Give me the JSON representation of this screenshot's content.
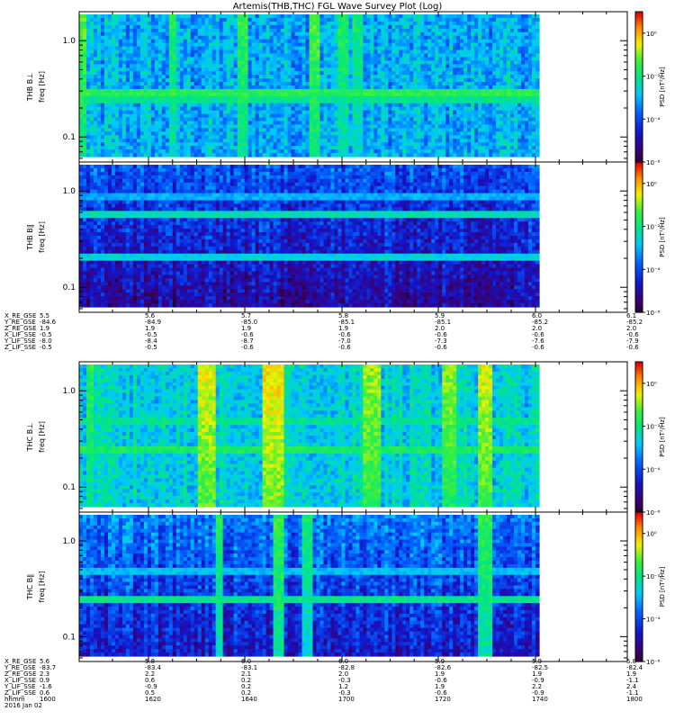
{
  "title": "Artemis(THB,THC) FGL Wave Survey Plot (Log)",
  "colors": {
    "frame": "#000000",
    "background": "#ffffff"
  },
  "colorbar": {
    "label": "PSD [nT²/Hz]",
    "ticks": [
      "10⁰",
      "10⁻²",
      "10⁻⁴",
      "10⁻⁶"
    ],
    "colormap": "rainbow-dark-to-red"
  },
  "chart_data": [
    {
      "type": "heatmap",
      "probe": "THB",
      "component": "B⊥",
      "ylabel_top": "THB B⊥",
      "ylabel": "freq [Hz]",
      "yscale": "log",
      "ylim": [
        0.055,
        2.0
      ],
      "yticks": [
        "1.0",
        "0.1"
      ],
      "ytick_values": [
        1.0,
        0.1
      ],
      "zlim": [
        1e-06,
        10
      ],
      "zscale": "log",
      "background_level": -3.0,
      "noise": 0.9,
      "bands": [
        {
          "f": 0.3,
          "level": -1.5
        },
        {
          "f": 0.24,
          "level": -2.1
        }
      ],
      "bursts": [
        {
          "x": 0.0,
          "level": -1.2,
          "width": 0.01
        },
        {
          "x": 0.2,
          "level": -1.6,
          "width": 0.01
        },
        {
          "x": 0.35,
          "level": -1.4,
          "width": 0.012
        },
        {
          "x": 0.51,
          "level": -1.2,
          "width": 0.012
        },
        {
          "x": 0.57,
          "level": -1.6,
          "width": 0.01
        },
        {
          "x": 0.6,
          "level": -1.8,
          "width": 0.01
        }
      ]
    },
    {
      "type": "heatmap",
      "probe": "THB",
      "component": "B∥",
      "ylabel_top": "THB B∥",
      "ylabel": "freq [Hz]",
      "yscale": "log",
      "ylim": [
        0.055,
        2.0
      ],
      "yticks": [
        "1.0",
        "0.1"
      ],
      "ytick_values": [
        1.0,
        0.1
      ],
      "zlim": [
        1e-06,
        10
      ],
      "zscale": "log",
      "background_level": -4.2,
      "noise": 0.9,
      "bands": [
        {
          "f": 0.6,
          "level": -2.3
        },
        {
          "f": 0.9,
          "level": -3.0
        },
        {
          "f": 0.2,
          "level": -2.6
        }
      ],
      "bursts": []
    },
    {
      "type": "heatmap",
      "probe": "THC",
      "component": "B⊥",
      "ylabel_top": "THC B⊥",
      "ylabel": "freq [Hz]",
      "yscale": "log",
      "ylim": [
        0.055,
        2.0
      ],
      "yticks": [
        "1.0",
        "0.1"
      ],
      "ytick_values": [
        1.0,
        0.1
      ],
      "zlim": [
        1e-06,
        10
      ],
      "zscale": "log",
      "background_level": -2.6,
      "noise": 0.8,
      "bands": [
        {
          "f": 0.24,
          "level": -1.7
        },
        {
          "f": 0.5,
          "level": -2.1
        }
      ],
      "bursts": [
        {
          "x": 0.02,
          "level": -1.5,
          "width": 0.01
        },
        {
          "x": 0.27,
          "level": -0.5,
          "width": 0.02
        },
        {
          "x": 0.42,
          "level": -0.3,
          "width": 0.025
        },
        {
          "x": 0.63,
          "level": -0.8,
          "width": 0.02
        },
        {
          "x": 0.8,
          "level": -0.9,
          "width": 0.015
        },
        {
          "x": 0.88,
          "level": -0.6,
          "width": 0.018
        }
      ]
    },
    {
      "type": "heatmap",
      "probe": "THC",
      "component": "B∥",
      "ylabel_top": "THC B∥",
      "ylabel": "freq [Hz]",
      "yscale": "log",
      "ylim": [
        0.055,
        2.0
      ],
      "yticks": [
        "1.0",
        "0.1"
      ],
      "ytick_values": [
        1.0,
        0.1
      ],
      "zlim": [
        1e-06,
        10
      ],
      "zscale": "log",
      "background_level": -3.8,
      "noise": 0.9,
      "bands": [
        {
          "f": 0.24,
          "level": -2.0
        },
        {
          "f": 0.5,
          "level": -2.8
        }
      ],
      "bursts": [
        {
          "x": 0.3,
          "level": -1.6,
          "width": 0.01
        },
        {
          "x": 0.43,
          "level": -1.4,
          "width": 0.015
        },
        {
          "x": 0.49,
          "level": -1.8,
          "width": 0.012
        },
        {
          "x": 0.88,
          "level": -1.5,
          "width": 0.015
        }
      ]
    }
  ],
  "ephemeris": [
    {
      "rows": [
        {
          "label": "X_RE_GSE",
          "values": [
            "5.5",
            "5.6",
            "5.7",
            "5.8",
            "5.9",
            "6.0",
            "6.1"
          ]
        },
        {
          "label": "Y_RE_GSE",
          "values": [
            "-84.6",
            "-84.9",
            "-85.0",
            "-85.1",
            "-85.1",
            "-85.2",
            "-85.2"
          ]
        },
        {
          "label": "Z_RE_GSE",
          "values": [
            "1.9",
            "1.9",
            "1.9",
            "1.9",
            "2.0",
            "2.0",
            "2.0"
          ]
        },
        {
          "label": "X_LIF_SSE",
          "values": [
            "-0.5",
            "-0.5",
            "-0.6",
            "-0.6",
            "-0.6",
            "-0.6",
            "-0.6"
          ]
        },
        {
          "label": "Y_LIF_SSE",
          "values": [
            "-8.0",
            "-8.4",
            "-8.7",
            "-7.0",
            "-7.3",
            "-7.6",
            "-7.9"
          ]
        },
        {
          "label": "Z_LIF_SSE",
          "values": [
            "-0.5",
            "-0.5",
            "-0.6",
            "-0.6",
            "-0.6",
            "-0.6",
            "-0.6"
          ]
        }
      ]
    },
    {
      "rows": [
        {
          "label": "X_RE_GSE",
          "values": [
            "5.6",
            "5.8",
            "6.0",
            "6.0",
            "5.9",
            "5.9",
            "5.8"
          ]
        },
        {
          "label": "Y_RE_GSE",
          "values": [
            "-83.7",
            "-83.4",
            "-83.1",
            "-82.8",
            "-82.6",
            "-82.5",
            "-82.4"
          ]
        },
        {
          "label": "Z_RE_GSE",
          "values": [
            "2.3",
            "2.2",
            "2.1",
            "2.0",
            "1.9",
            "1.9",
            "1.9"
          ]
        },
        {
          "label": "X_LIF_SSE",
          "values": [
            "0.9",
            "0.6",
            "0.2",
            "-0.3",
            "-0.6",
            "-0.9",
            "-1.1"
          ]
        },
        {
          "label": "Y_LIF_SSE",
          "values": [
            "-1.6",
            "-0.9",
            "0.2",
            "1.2",
            "1.9",
            "2.2",
            "2.4"
          ]
        },
        {
          "label": "Z_LIF_SSE",
          "values": [
            "0.6",
            "0.5",
            "0.2",
            "-0.3",
            "-0.6",
            "-0.9",
            "-1.1"
          ]
        },
        {
          "label": "hhmm",
          "values": [
            "1600",
            "1620",
            "1640",
            "1700",
            "1720",
            "1740",
            "1800"
          ]
        }
      ],
      "date": "2016 Jan 02"
    }
  ]
}
